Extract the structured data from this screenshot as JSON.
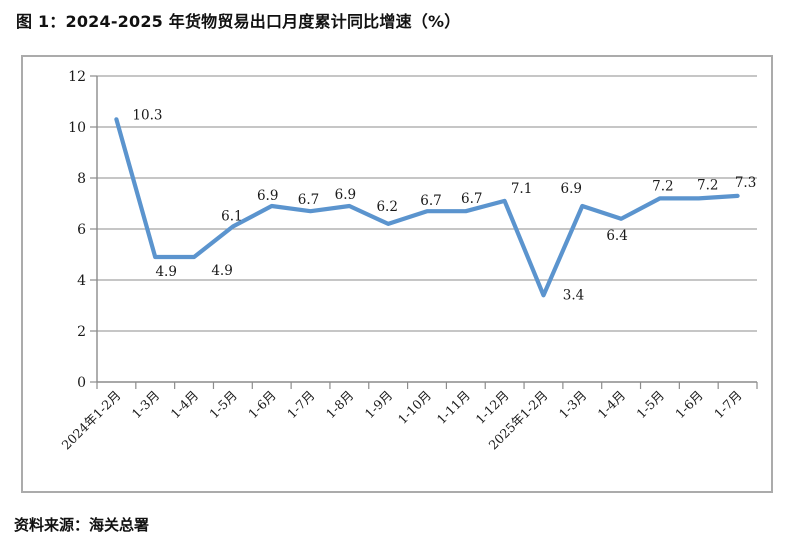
{
  "chart_data": {
    "type": "line",
    "title": "图 1：2024-2025 年货物贸易出口月度累计同比增速（%）",
    "source": "资料来源：海关总署",
    "categories": [
      "2024年1-2月",
      "1-3月",
      "1-4月",
      "1-5月",
      "1-6月",
      "1-7月",
      "1-8月",
      "1-9月",
      "1-10月",
      "1-11月",
      "1-12月",
      "2025年1-2月",
      "1-3月",
      "1-4月",
      "1-5月",
      "1-6月",
      "1-7月"
    ],
    "values": [
      10.3,
      4.9,
      4.9,
      6.1,
      6.9,
      6.7,
      6.9,
      6.2,
      6.7,
      6.7,
      7.1,
      3.4,
      6.9,
      6.4,
      7.2,
      7.2,
      7.3
    ],
    "xlabel": "",
    "ylabel": "",
    "ylim": [
      0,
      12
    ],
    "ytick_step": 2,
    "grid": true,
    "legend": "none",
    "line_color": "#5b94ce",
    "gridline_color": "#a3a3a3",
    "axis_color": "#8c8c8c",
    "label_offsets": [
      [
        16,
        0,
        "start"
      ],
      [
        11,
        19,
        "middle"
      ],
      [
        28,
        18,
        "middle"
      ],
      [
        -1,
        -6,
        "middle"
      ],
      [
        -4,
        -6,
        "middle"
      ],
      [
        -2,
        -7,
        "middle"
      ],
      [
        -4,
        -7,
        "middle"
      ],
      [
        -1,
        -13,
        "middle"
      ],
      [
        4,
        -6,
        "middle"
      ],
      [
        6,
        -8,
        "middle"
      ],
      [
        17,
        -8,
        "middle"
      ],
      [
        30,
        4,
        "middle"
      ],
      [
        -11,
        -13,
        "middle"
      ],
      [
        -4,
        21,
        "middle"
      ],
      [
        3,
        -8,
        "middle"
      ],
      [
        9,
        -9,
        "middle"
      ],
      [
        8,
        -9,
        "middle"
      ]
    ]
  }
}
